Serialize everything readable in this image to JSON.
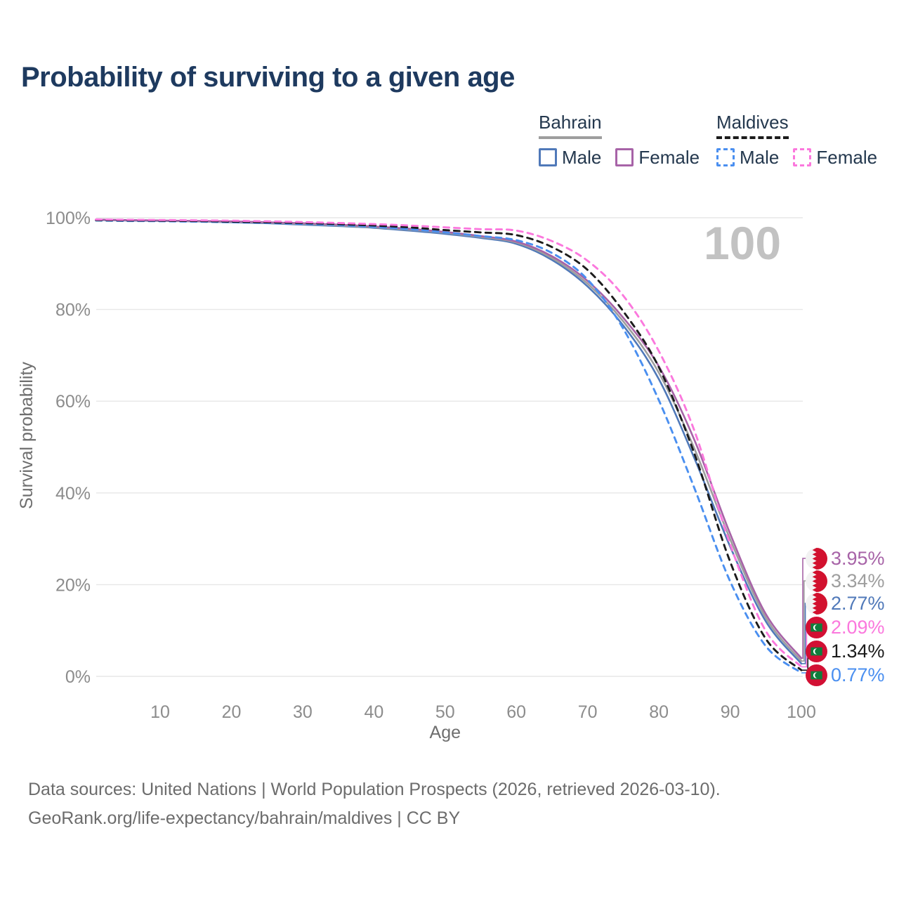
{
  "page": {
    "title": "Probability of surviving to a given age"
  },
  "legend": {
    "groups": [
      {
        "title": "Bahrain",
        "line_style": "solid",
        "line_color": "#9e9e9e",
        "items": [
          {
            "label": "Male",
            "color": "#5079b9",
            "box": "solid"
          },
          {
            "label": "Female",
            "color": "#a763a7",
            "box": "solid"
          }
        ]
      },
      {
        "title": "Maldives",
        "line_style": "dashed",
        "line_color": "#1b1b1b",
        "items": [
          {
            "label": "Male",
            "color": "#4a8ff0",
            "box": "dashed"
          },
          {
            "label": "Female",
            "color": "#fb78dd",
            "box": "dashed"
          }
        ]
      }
    ]
  },
  "watermark": "100",
  "chart_data": {
    "type": "line",
    "title": "Probability of surviving to a given age",
    "xlabel": "Age",
    "ylabel": "Survival probability",
    "xlim": [
      1,
      100
    ],
    "ylim": [
      0,
      100
    ],
    "grid": "horizontal",
    "legend_position": "top-right",
    "hover_age_label": "100",
    "x_tick_values": [
      10,
      20,
      30,
      40,
      50,
      60,
      70,
      80,
      90,
      100
    ],
    "x_tick_labels": [
      "10",
      "20",
      "30",
      "40",
      "50",
      "60",
      "70",
      "80",
      "90",
      "100"
    ],
    "y_tick_values": [
      0,
      20,
      40,
      60,
      80,
      100
    ],
    "y_tick_labels": [
      "0%",
      "20%",
      "40%",
      "60%",
      "80%",
      "100%"
    ],
    "x": [
      1,
      5,
      10,
      15,
      20,
      25,
      30,
      35,
      40,
      45,
      50,
      55,
      60,
      65,
      70,
      75,
      80,
      85,
      90,
      95,
      100
    ],
    "series": [
      {
        "name": "Bahrain Male",
        "country": "Bahrain",
        "sex": "Male",
        "style": "solid",
        "color": "#5079b9",
        "end_label": "2.77%",
        "values": [
          99.5,
          99.4,
          99.3,
          99.2,
          99.0,
          98.8,
          98.5,
          98.2,
          97.8,
          97.2,
          96.5,
          95.6,
          94.3,
          90.8,
          85.0,
          76.5,
          64.8,
          47.5,
          28.3,
          12.0,
          2.77
        ]
      },
      {
        "name": "Bahrain Both sexes",
        "country": "Bahrain",
        "sex": "Both",
        "style": "solid",
        "color": "#9e9e9e",
        "end_label": "3.34%",
        "values": [
          99.55,
          99.45,
          99.35,
          99.25,
          99.1,
          98.9,
          98.6,
          98.3,
          97.9,
          97.4,
          96.7,
          95.8,
          94.6,
          91.2,
          85.6,
          77.4,
          66.2,
          49.6,
          29.9,
          12.8,
          3.34
        ]
      },
      {
        "name": "Bahrain Female",
        "country": "Bahrain",
        "sex": "Female",
        "style": "solid",
        "color": "#a763a7",
        "end_label": "3.95%",
        "values": [
          99.6,
          99.5,
          99.4,
          99.3,
          99.2,
          99.0,
          98.8,
          98.5,
          98.1,
          97.6,
          96.9,
          96.0,
          94.8,
          91.6,
          86.2,
          78.2,
          67.6,
          51.5,
          31.1,
          13.6,
          3.95
        ]
      },
      {
        "name": "Maldives Male",
        "country": "Maldives",
        "sex": "Male",
        "style": "dashed",
        "color": "#4a8ff0",
        "end_label": "0.77%",
        "values": [
          99.4,
          99.3,
          99.25,
          99.15,
          99.0,
          98.85,
          98.65,
          98.4,
          98.0,
          97.5,
          96.8,
          96.0,
          95.1,
          92.3,
          86.5,
          75.8,
          60.2,
          41.0,
          20.7,
          6.6,
          0.77
        ]
      },
      {
        "name": "Maldives Both sexes",
        "country": "Maldives",
        "sex": "Both",
        "style": "dashed",
        "color": "#1b1b1b",
        "end_label": "1.34%",
        "values": [
          99.5,
          99.42,
          99.36,
          99.28,
          99.15,
          99.0,
          98.85,
          98.6,
          98.3,
          97.9,
          97.3,
          96.8,
          96.2,
          93.6,
          88.6,
          79.6,
          67.4,
          48.5,
          25.0,
          8.2,
          1.34
        ]
      },
      {
        "name": "Maldives Female",
        "country": "Maldives",
        "sex": "Female",
        "style": "dashed",
        "color": "#fb78dd",
        "end_label": "2.09%",
        "values": [
          99.62,
          99.56,
          99.5,
          99.44,
          99.35,
          99.22,
          99.05,
          98.85,
          98.6,
          98.3,
          97.9,
          97.5,
          97.2,
          94.9,
          90.6,
          83.0,
          70.9,
          53.5,
          28.8,
          9.9,
          2.09
        ]
      }
    ]
  },
  "end_labels": [
    {
      "flag": "bahrain",
      "value": "3.95%",
      "color": "#a763a7"
    },
    {
      "flag": "bahrain",
      "value": "3.34%",
      "color": "#9e9e9e"
    },
    {
      "flag": "bahrain",
      "value": "2.77%",
      "color": "#5079b9"
    },
    {
      "flag": "maldives",
      "value": "2.09%",
      "color": "#fb78dd"
    },
    {
      "flag": "maldives",
      "value": "1.34%",
      "color": "#1b1b1b"
    },
    {
      "flag": "maldives",
      "value": "0.77%",
      "color": "#4a8ff0"
    }
  ],
  "footer": {
    "line1": "Data sources: United Nations | World Population Prospects (2026, retrieved 2026-03-10).",
    "line2": "GeoRank.org/life-expectancy/bahrain/maldives | CC BY"
  }
}
